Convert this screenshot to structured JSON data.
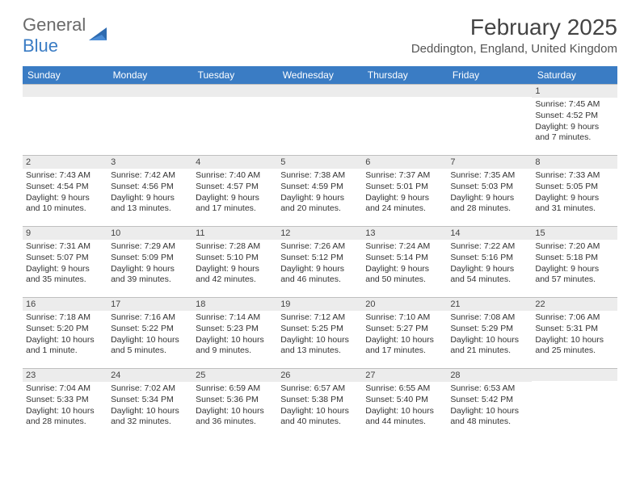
{
  "logo": {
    "text1": "General",
    "text2": "Blue"
  },
  "title": "February 2025",
  "location": "Deddington, England, United Kingdom",
  "colors": {
    "header_bg": "#3a7cc4",
    "header_text": "#ffffff",
    "daynum_bg": "#ececec",
    "border": "#bfbfbf",
    "logo_gray": "#6a6a6a",
    "logo_blue": "#3a7cc4"
  },
  "weekdays": [
    "Sunday",
    "Monday",
    "Tuesday",
    "Wednesday",
    "Thursday",
    "Friday",
    "Saturday"
  ],
  "weeks": [
    [
      null,
      null,
      null,
      null,
      null,
      null,
      {
        "n": "1",
        "sr": "7:45 AM",
        "ss": "4:52 PM",
        "dl": "9 hours and 7 minutes."
      }
    ],
    [
      {
        "n": "2",
        "sr": "7:43 AM",
        "ss": "4:54 PM",
        "dl": "9 hours and 10 minutes."
      },
      {
        "n": "3",
        "sr": "7:42 AM",
        "ss": "4:56 PM",
        "dl": "9 hours and 13 minutes."
      },
      {
        "n": "4",
        "sr": "7:40 AM",
        "ss": "4:57 PM",
        "dl": "9 hours and 17 minutes."
      },
      {
        "n": "5",
        "sr": "7:38 AM",
        "ss": "4:59 PM",
        "dl": "9 hours and 20 minutes."
      },
      {
        "n": "6",
        "sr": "7:37 AM",
        "ss": "5:01 PM",
        "dl": "9 hours and 24 minutes."
      },
      {
        "n": "7",
        "sr": "7:35 AM",
        "ss": "5:03 PM",
        "dl": "9 hours and 28 minutes."
      },
      {
        "n": "8",
        "sr": "7:33 AM",
        "ss": "5:05 PM",
        "dl": "9 hours and 31 minutes."
      }
    ],
    [
      {
        "n": "9",
        "sr": "7:31 AM",
        "ss": "5:07 PM",
        "dl": "9 hours and 35 minutes."
      },
      {
        "n": "10",
        "sr": "7:29 AM",
        "ss": "5:09 PM",
        "dl": "9 hours and 39 minutes."
      },
      {
        "n": "11",
        "sr": "7:28 AM",
        "ss": "5:10 PM",
        "dl": "9 hours and 42 minutes."
      },
      {
        "n": "12",
        "sr": "7:26 AM",
        "ss": "5:12 PM",
        "dl": "9 hours and 46 minutes."
      },
      {
        "n": "13",
        "sr": "7:24 AM",
        "ss": "5:14 PM",
        "dl": "9 hours and 50 minutes."
      },
      {
        "n": "14",
        "sr": "7:22 AM",
        "ss": "5:16 PM",
        "dl": "9 hours and 54 minutes."
      },
      {
        "n": "15",
        "sr": "7:20 AM",
        "ss": "5:18 PM",
        "dl": "9 hours and 57 minutes."
      }
    ],
    [
      {
        "n": "16",
        "sr": "7:18 AM",
        "ss": "5:20 PM",
        "dl": "10 hours and 1 minute."
      },
      {
        "n": "17",
        "sr": "7:16 AM",
        "ss": "5:22 PM",
        "dl": "10 hours and 5 minutes."
      },
      {
        "n": "18",
        "sr": "7:14 AM",
        "ss": "5:23 PM",
        "dl": "10 hours and 9 minutes."
      },
      {
        "n": "19",
        "sr": "7:12 AM",
        "ss": "5:25 PM",
        "dl": "10 hours and 13 minutes."
      },
      {
        "n": "20",
        "sr": "7:10 AM",
        "ss": "5:27 PM",
        "dl": "10 hours and 17 minutes."
      },
      {
        "n": "21",
        "sr": "7:08 AM",
        "ss": "5:29 PM",
        "dl": "10 hours and 21 minutes."
      },
      {
        "n": "22",
        "sr": "7:06 AM",
        "ss": "5:31 PM",
        "dl": "10 hours and 25 minutes."
      }
    ],
    [
      {
        "n": "23",
        "sr": "7:04 AM",
        "ss": "5:33 PM",
        "dl": "10 hours and 28 minutes."
      },
      {
        "n": "24",
        "sr": "7:02 AM",
        "ss": "5:34 PM",
        "dl": "10 hours and 32 minutes."
      },
      {
        "n": "25",
        "sr": "6:59 AM",
        "ss": "5:36 PM",
        "dl": "10 hours and 36 minutes."
      },
      {
        "n": "26",
        "sr": "6:57 AM",
        "ss": "5:38 PM",
        "dl": "10 hours and 40 minutes."
      },
      {
        "n": "27",
        "sr": "6:55 AM",
        "ss": "5:40 PM",
        "dl": "10 hours and 44 minutes."
      },
      {
        "n": "28",
        "sr": "6:53 AM",
        "ss": "5:42 PM",
        "dl": "10 hours and 48 minutes."
      },
      null
    ]
  ],
  "labels": {
    "sunrise": "Sunrise:",
    "sunset": "Sunset:",
    "daylight": "Daylight:"
  }
}
